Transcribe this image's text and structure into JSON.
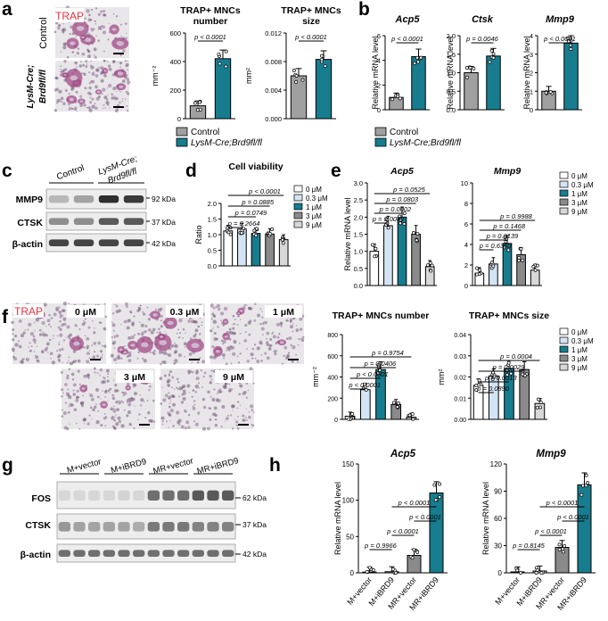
{
  "colors": {
    "control": "#a0a0a0",
    "cko": "#177c8e",
    "d0": "#ffffff",
    "d03": "#d4e4f4",
    "d1": "#177c8e",
    "d3": "#8a8a8a",
    "d9": "#d8d8d8",
    "trap_label": "#e8323c",
    "trap_stain": "#a04a84"
  },
  "legends": {
    "ab": [
      "Control",
      "LysM-Cre;Brd9fl/fl"
    ],
    "dose": [
      "0 μM",
      "0.3 μM",
      "1 μM",
      "3 μM",
      "9 μM"
    ]
  },
  "panel_a": {
    "letter": "a",
    "trap": "TRAP",
    "row_labels": [
      "Control",
      "LysM-Cre; Brd9fl/fl"
    ]
  },
  "panel_b": {
    "letter": "b"
  },
  "panel_c": {
    "letter": "c",
    "groups": [
      "Control",
      "LysM-Cre; Brd9fl/fl"
    ],
    "bands": [
      "MMP9",
      "CTSK",
      "β-actin"
    ],
    "kda": [
      "92 kDa",
      "37 kDa",
      "42 kDa"
    ]
  },
  "panel_d": {
    "letter": "d"
  },
  "panel_e": {
    "letter": "e"
  },
  "panel_f": {
    "letter": "f",
    "trap": "TRAP",
    "doses": [
      "0 μM",
      "0.3 μM",
      "1 μM",
      "3 μM",
      "9 μM"
    ]
  },
  "panel_g": {
    "letter": "g",
    "groups": [
      "M+vector",
      "M+iBRD9",
      "MR+vector",
      "MR+iBRD9"
    ],
    "bands": [
      "FOS",
      "CTSK",
      "β-actin"
    ],
    "kda": [
      "62 kDa",
      "37 kDa",
      "42 kDa"
    ]
  },
  "panel_h": {
    "letter": "h"
  },
  "chart_data": [
    {
      "id": "a1",
      "type": "bar",
      "title": "TRAP+ MNCs number",
      "ylabel": "mm⁻²",
      "categories": [
        "Control",
        "LysM-Cre;Brd9fl/fl"
      ],
      "values": [
        90,
        420
      ],
      "ylim": [
        0,
        600
      ],
      "yticks": [
        "0",
        "200",
        "400",
        "600"
      ],
      "color_keys": [
        "control",
        "cko"
      ],
      "pvalues": [
        {
          "text": "p < 0.0001",
          "from": 0,
          "to": 1
        }
      ]
    },
    {
      "id": "a2",
      "type": "bar",
      "title": "TRAP+ MNCs size",
      "ylabel": "mm²",
      "categories": [
        "Control",
        "LysM-Cre;Brd9fl/fl"
      ],
      "values": [
        0.006,
        0.0083
      ],
      "ylim": [
        0,
        0.012
      ],
      "yticks": [
        "0.000",
        "0.004",
        "0.008",
        "0.012"
      ],
      "color_keys": [
        "control",
        "cko"
      ],
      "pvalues": [
        {
          "text": "p < 0.0001",
          "from": 0,
          "to": 1
        }
      ]
    },
    {
      "id": "b1",
      "type": "bar",
      "title": "Acp5",
      "ylabel": "Relative mRNA level",
      "categories": [
        "Control",
        "LysM-Cre;Brd9fl/fl"
      ],
      "values": [
        1.0,
        4.3
      ],
      "ylim": [
        0,
        6
      ],
      "yticks": [
        "0",
        "2",
        "4",
        "6"
      ],
      "color_keys": [
        "control",
        "cko"
      ],
      "pvalues": [
        {
          "text": "p < 0.0001",
          "from": 0,
          "to": 1
        }
      ]
    },
    {
      "id": "b2",
      "type": "bar",
      "title": "Ctsk",
      "ylabel": "Relative mRNA level",
      "categories": [
        "Control",
        "LysM-Cre;Brd9fl/fl"
      ],
      "values": [
        1.0,
        1.45
      ],
      "ylim": [
        0,
        2
      ],
      "yticks": [
        "0.0",
        "0.5",
        "1.0",
        "1.5",
        "2.0"
      ],
      "color_keys": [
        "control",
        "cko"
      ],
      "pvalues": [
        {
          "text": "p = 0.0046",
          "from": 0,
          "to": 1
        }
      ]
    },
    {
      "id": "b3",
      "type": "bar",
      "title": "Mmp9",
      "ylabel": "Relative mRNA level",
      "categories": [
        "Control",
        "LysM-Cre;Brd9fl/fl"
      ],
      "values": [
        1.0,
        3.6
      ],
      "ylim": [
        0,
        4
      ],
      "yticks": [
        "0",
        "1",
        "2",
        "3",
        "4"
      ],
      "color_keys": [
        "control",
        "cko"
      ],
      "pvalues": [
        {
          "text": "p < 0.0001",
          "from": 0,
          "to": 1
        }
      ]
    },
    {
      "id": "d",
      "type": "bar",
      "title": "Cell viability",
      "ylabel": "Ratio",
      "categories": [
        "0 μM",
        "0.3 μM",
        "1 μM",
        "3 μM",
        "9 μM"
      ],
      "values": [
        1.12,
        1.18,
        1.04,
        1.02,
        0.84
      ],
      "ylim": [
        0,
        2.0
      ],
      "yticks": [
        "0.0",
        "0.5",
        "1.0",
        "1.5",
        "2.0"
      ],
      "color_keys": [
        "d0",
        "d03",
        "d1",
        "d3",
        "d9"
      ],
      "pvalues": [
        {
          "text": "p = 0.2664",
          "from": 0,
          "to": 1
        },
        {
          "text": "p = 0.0749",
          "from": 0,
          "to": 2
        },
        {
          "text": "p = 0.0885",
          "from": 0,
          "to": 3
        },
        {
          "text": "p < 0.0001",
          "from": 0,
          "to": 4
        }
      ]
    },
    {
      "id": "e1",
      "type": "bar",
      "title": "Acp5",
      "ylabel": "Relative mRNA level",
      "categories": [
        "0 μM",
        "0.3 μM",
        "1 μM",
        "3 μM",
        "9 μM"
      ],
      "values": [
        1.0,
        1.75,
        2.0,
        1.5,
        0.55
      ],
      "ylim": [
        0,
        3.0
      ],
      "yticks": [
        "0.0",
        "0.5",
        "1.0",
        "1.5",
        "2.0",
        "2.5",
        "3.0"
      ],
      "color_keys": [
        "d0",
        "d03",
        "d1",
        "d3",
        "d9"
      ],
      "pvalues": [
        {
          "text": "p = 0.0042",
          "from": 0,
          "to": 1
        },
        {
          "text": "p = 0.0002",
          "from": 0,
          "to": 2
        },
        {
          "text": "p = 0.0803",
          "from": 0,
          "to": 3
        },
        {
          "text": "p = 0.0525",
          "from": 0,
          "to": 4
        }
      ]
    },
    {
      "id": "e2",
      "type": "bar",
      "title": "Mmp9",
      "ylabel": "",
      "categories": [
        "0 μM",
        "0.3 μM",
        "1 μM",
        "3 μM",
        "9 μM"
      ],
      "values": [
        1.2,
        2.1,
        4.1,
        3.0,
        1.5
      ],
      "ylim": [
        0,
        10
      ],
      "yticks": [
        "0",
        "2",
        "4",
        "6",
        "8",
        "10"
      ],
      "color_keys": [
        "d0",
        "d03",
        "d1",
        "d3",
        "d9"
      ],
      "pvalues": [
        {
          "text": "p = 0.6360",
          "from": 0,
          "to": 1
        },
        {
          "text": "p = 0.0139",
          "from": 0,
          "to": 2
        },
        {
          "text": "p = 0.1468",
          "from": 0,
          "to": 3
        },
        {
          "text": "p = 0.9988",
          "from": 0,
          "to": 4
        }
      ]
    },
    {
      "id": "f1",
      "type": "bar",
      "title": "TRAP+ MNCs number",
      "ylabel": "mm⁻²",
      "categories": [
        "0 μM",
        "0.3 μM",
        "1 μM",
        "3 μM",
        "9 μM"
      ],
      "values": [
        30,
        280,
        470,
        140,
        20
      ],
      "ylim": [
        0,
        800
      ],
      "yticks": [
        "0",
        "200",
        "400",
        "600",
        "800"
      ],
      "color_keys": [
        "d0",
        "d03",
        "d1",
        "d3",
        "d9"
      ],
      "pvalues": [
        {
          "text": "p < 0.0001",
          "from": 0,
          "to": 1
        },
        {
          "text": "p < 0.0001",
          "from": 0,
          "to": 2
        },
        {
          "text": "p = 0.0406",
          "from": 0,
          "to": 3
        },
        {
          "text": "p = 0.9754",
          "from": 0,
          "to": 4
        }
      ]
    },
    {
      "id": "f2",
      "type": "bar",
      "title": "TRAP+ MNCs size",
      "ylabel": "mm²",
      "categories": [
        "0 μM",
        "0.3 μM",
        "1 μM",
        "3 μM",
        "9 μM"
      ],
      "values": [
        0.016,
        0.0205,
        0.024,
        0.0235,
        0.0075
      ],
      "ylim": [
        0,
        0.04
      ],
      "yticks": [
        "0.00",
        "0.01",
        "0.02",
        "0.03",
        "0.04"
      ],
      "color_keys": [
        "d0",
        "d03",
        "d1",
        "d3",
        "d9"
      ],
      "pvalues": [
        {
          "text": "p = 0.0890",
          "from": 0,
          "to": 1
        },
        {
          "text": "p = 0.0013",
          "from": 0,
          "to": 2
        },
        {
          "text": "p = 0.0029",
          "from": 0,
          "to": 3
        },
        {
          "text": "p = 0.0004",
          "from": 0,
          "to": 4
        }
      ]
    },
    {
      "id": "h1",
      "type": "bar",
      "title": "Acp5",
      "ylabel": "Relative mRNA level",
      "categories": [
        "M+vector",
        "M+iBRD9",
        "MR+vector",
        "MR+iBRD9"
      ],
      "values": [
        1,
        1.5,
        24,
        110
      ],
      "ylim": [
        0,
        150
      ],
      "yticks": [
        "0",
        "50",
        "100",
        "150"
      ],
      "color_keys": [
        "d0",
        "d03",
        "d3",
        "d1"
      ],
      "pvalues": [
        {
          "text": "p = 0.9966",
          "from": 0,
          "to": 1
        },
        {
          "text": "p < 0.0001",
          "from": 1,
          "to": 2
        },
        {
          "text": "p < 0.0001",
          "from": 2,
          "to": 3
        },
        {
          "text": "p < 0.0001",
          "from": 1,
          "to": 3
        }
      ]
    },
    {
      "id": "h2",
      "type": "bar",
      "title": "Mmp9",
      "ylabel": "Relative mRNA level",
      "categories": [
        "M+vector",
        "M+iBRD9",
        "MR+vector",
        "MR+iBRD9"
      ],
      "values": [
        1,
        2,
        28,
        97
      ],
      "ylim": [
        0,
        120
      ],
      "yticks": [
        "0",
        "30",
        "60",
        "90",
        "120"
      ],
      "color_keys": [
        "d0",
        "d03",
        "d3",
        "d1"
      ],
      "pvalues": [
        {
          "text": "p = 0.8145",
          "from": 0,
          "to": 1
        },
        {
          "text": "p < 0.0001",
          "from": 1,
          "to": 2
        },
        {
          "text": "p < 0.0001",
          "from": 2,
          "to": 3
        },
        {
          "text": "p < 0.0001",
          "from": 1,
          "to": 3
        }
      ]
    }
  ]
}
